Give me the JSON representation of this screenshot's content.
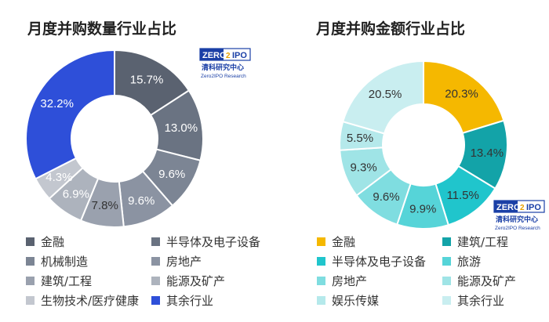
{
  "logo": {
    "mark_left": "ZERO",
    "mark_right": "IPO",
    "mark_digit": "2",
    "cn": "清科研究中心",
    "en": "Zero2IPO Research"
  },
  "chart_data": [
    {
      "type": "pie",
      "donut": true,
      "title": "月度并购数量行业占比",
      "legend_position": "bottom",
      "start_angle_deg": 0,
      "direction": "clockwise",
      "slices": [
        {
          "name": "金融",
          "value": 15.7,
          "label": "15.7%",
          "color": "#5a6270",
          "label_color": "#ffffff"
        },
        {
          "name": "半导体及电子设备",
          "value": 13.0,
          "label": "13.0%",
          "color": "#6a7382",
          "label_color": "#ffffff"
        },
        {
          "name": "机械制造",
          "value": 9.6,
          "label": "9.6%",
          "color": "#7c8594",
          "label_color": "#ffffff"
        },
        {
          "name": "房地产",
          "value": 9.6,
          "label": "9.6%",
          "color": "#8b93a2",
          "label_color": "#ffffff"
        },
        {
          "name": "建筑/工程",
          "value": 7.8,
          "label": "7.8%",
          "color": "#9aa1ae",
          "label_color": "#333333"
        },
        {
          "name": "能源及矿产",
          "value": 6.9,
          "label": "6.9%",
          "color": "#adb3bd",
          "label_color": "#ffffff"
        },
        {
          "name": "生物技术/医疗健康",
          "value": 4.3,
          "label": "4.3%",
          "color": "#c3c7cf",
          "label_color": "#ffffff"
        },
        {
          "name": "其余行业",
          "value": 32.2,
          "label": "32.2%",
          "color": "#2e4fd9",
          "label_color": "#ffffff"
        }
      ],
      "legend": [
        {
          "label": "金融",
          "color": "#5a6270"
        },
        {
          "label": "半导体及电子设备",
          "color": "#6a7382"
        },
        {
          "label": "机械制造",
          "color": "#7c8594"
        },
        {
          "label": "房地产",
          "color": "#8b93a2"
        },
        {
          "label": "建筑/工程",
          "color": "#9aa1ae"
        },
        {
          "label": "能源及矿产",
          "color": "#adb3bd"
        },
        {
          "label": "生物技术/医疗健康",
          "color": "#c3c7cf"
        },
        {
          "label": "其余行业",
          "color": "#2e4fd9"
        }
      ]
    },
    {
      "type": "pie",
      "donut": true,
      "title": "月度并购金额行业占比",
      "legend_position": "bottom",
      "start_angle_deg": 0,
      "direction": "clockwise",
      "slices": [
        {
          "name": "金融",
          "value": 20.3,
          "label": "20.3%",
          "color": "#f5b800",
          "label_color": "#333333"
        },
        {
          "name": "建筑/工程",
          "value": 13.4,
          "label": "13.4%",
          "color": "#13a3a8",
          "label_color": "#333333"
        },
        {
          "name": "半导体及电子设备",
          "value": 11.5,
          "label": "11.5%",
          "color": "#20c5cc",
          "label_color": "#333333"
        },
        {
          "name": "旅游",
          "value": 9.9,
          "label": "9.9%",
          "color": "#56d4d8",
          "label_color": "#333333"
        },
        {
          "name": "房地产",
          "value": 9.6,
          "label": "9.6%",
          "color": "#7fdde0",
          "label_color": "#333333"
        },
        {
          "name": "能源及矿产",
          "value": 9.3,
          "label": "9.3%",
          "color": "#9fe4e6",
          "label_color": "#333333"
        },
        {
          "name": "娱乐传媒",
          "value": 5.5,
          "label": "5.5%",
          "color": "#b5e9eb",
          "label_color": "#333333"
        },
        {
          "name": "其余行业",
          "value": 20.5,
          "label": "20.5%",
          "color": "#c9eef0",
          "label_color": "#333333"
        }
      ],
      "legend": [
        {
          "label": "金融",
          "color": "#f5b800"
        },
        {
          "label": "建筑/工程",
          "color": "#13a3a8"
        },
        {
          "label": "半导体及电子设备",
          "color": "#20c5cc"
        },
        {
          "label": "旅游",
          "color": "#56d4d8"
        },
        {
          "label": "房地产",
          "color": "#7fdde0"
        },
        {
          "label": "能源及矿产",
          "color": "#9fe4e6"
        },
        {
          "label": "娱乐传媒",
          "color": "#b5e9eb"
        },
        {
          "label": "其余行业",
          "color": "#c9eef0"
        }
      ]
    }
  ]
}
